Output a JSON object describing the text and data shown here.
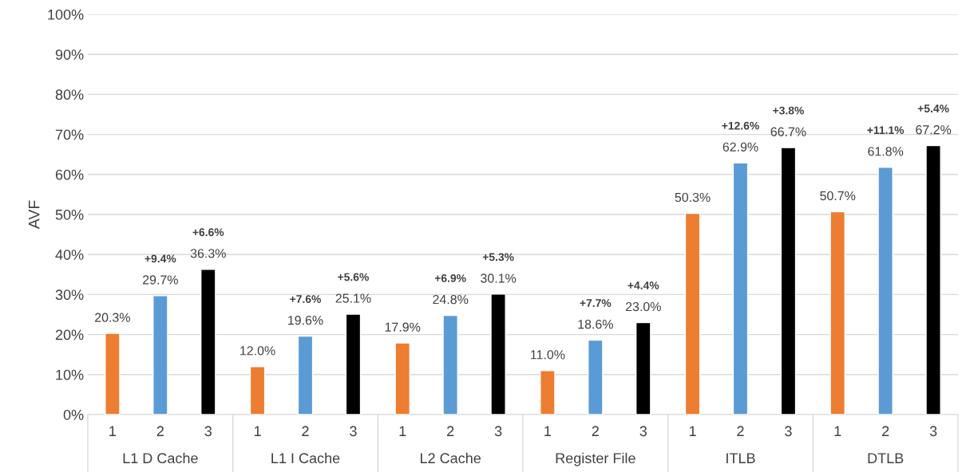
{
  "chart_data": {
    "type": "bar",
    "ylabel": "AVF",
    "categories": [
      "L1 D Cache",
      "L1 I Cache",
      "L2 Cache",
      "Register File",
      "ITLB",
      "DTLB"
    ],
    "series": [
      {
        "name": "1",
        "color": "#ed7d31",
        "values": [
          20.3,
          12.0,
          17.9,
          11.0,
          50.3,
          50.7
        ],
        "value_labels": [
          "20.3%",
          "12.0%",
          "17.9%",
          "11.0%",
          "50.3%",
          "50.7%"
        ]
      },
      {
        "name": "2",
        "color": "#5b9bd5",
        "values": [
          29.7,
          19.6,
          24.8,
          18.6,
          62.9,
          61.8
        ],
        "value_labels": [
          "29.7%",
          "19.6%",
          "24.8%",
          "18.6%",
          "62.9%",
          "61.8%"
        ]
      },
      {
        "name": "3",
        "color": "#000000",
        "values": [
          36.3,
          25.1,
          30.1,
          23.0,
          66.7,
          67.2
        ],
        "value_labels": [
          "36.3%",
          "25.1%",
          "30.1%",
          "23.0%",
          "66.7%",
          "67.2%"
        ]
      }
    ],
    "annotations": [
      "+9.4%",
      "+6.6%",
      "+7.6%",
      "+5.6%",
      "+6.9%",
      "+5.3%",
      "+7.7%",
      "+4.4%",
      "+12.6%",
      "+3.8%",
      "+11.1%",
      "+5.4%"
    ],
    "ylim": [
      0,
      100
    ],
    "yticks": [
      {
        "value": 0,
        "label": "0%"
      },
      {
        "value": 10,
        "label": "10%"
      },
      {
        "value": 20,
        "label": "20%"
      },
      {
        "value": 30,
        "label": "30%"
      },
      {
        "value": 40,
        "label": "40%"
      },
      {
        "value": 50,
        "label": "50%"
      },
      {
        "value": 60,
        "label": "60%"
      },
      {
        "value": 70,
        "label": "70%"
      },
      {
        "value": 80,
        "label": "80%"
      },
      {
        "value": 90,
        "label": "90%"
      },
      {
        "value": 100,
        "label": "100%"
      }
    ],
    "grid": "y",
    "legend": false
  }
}
